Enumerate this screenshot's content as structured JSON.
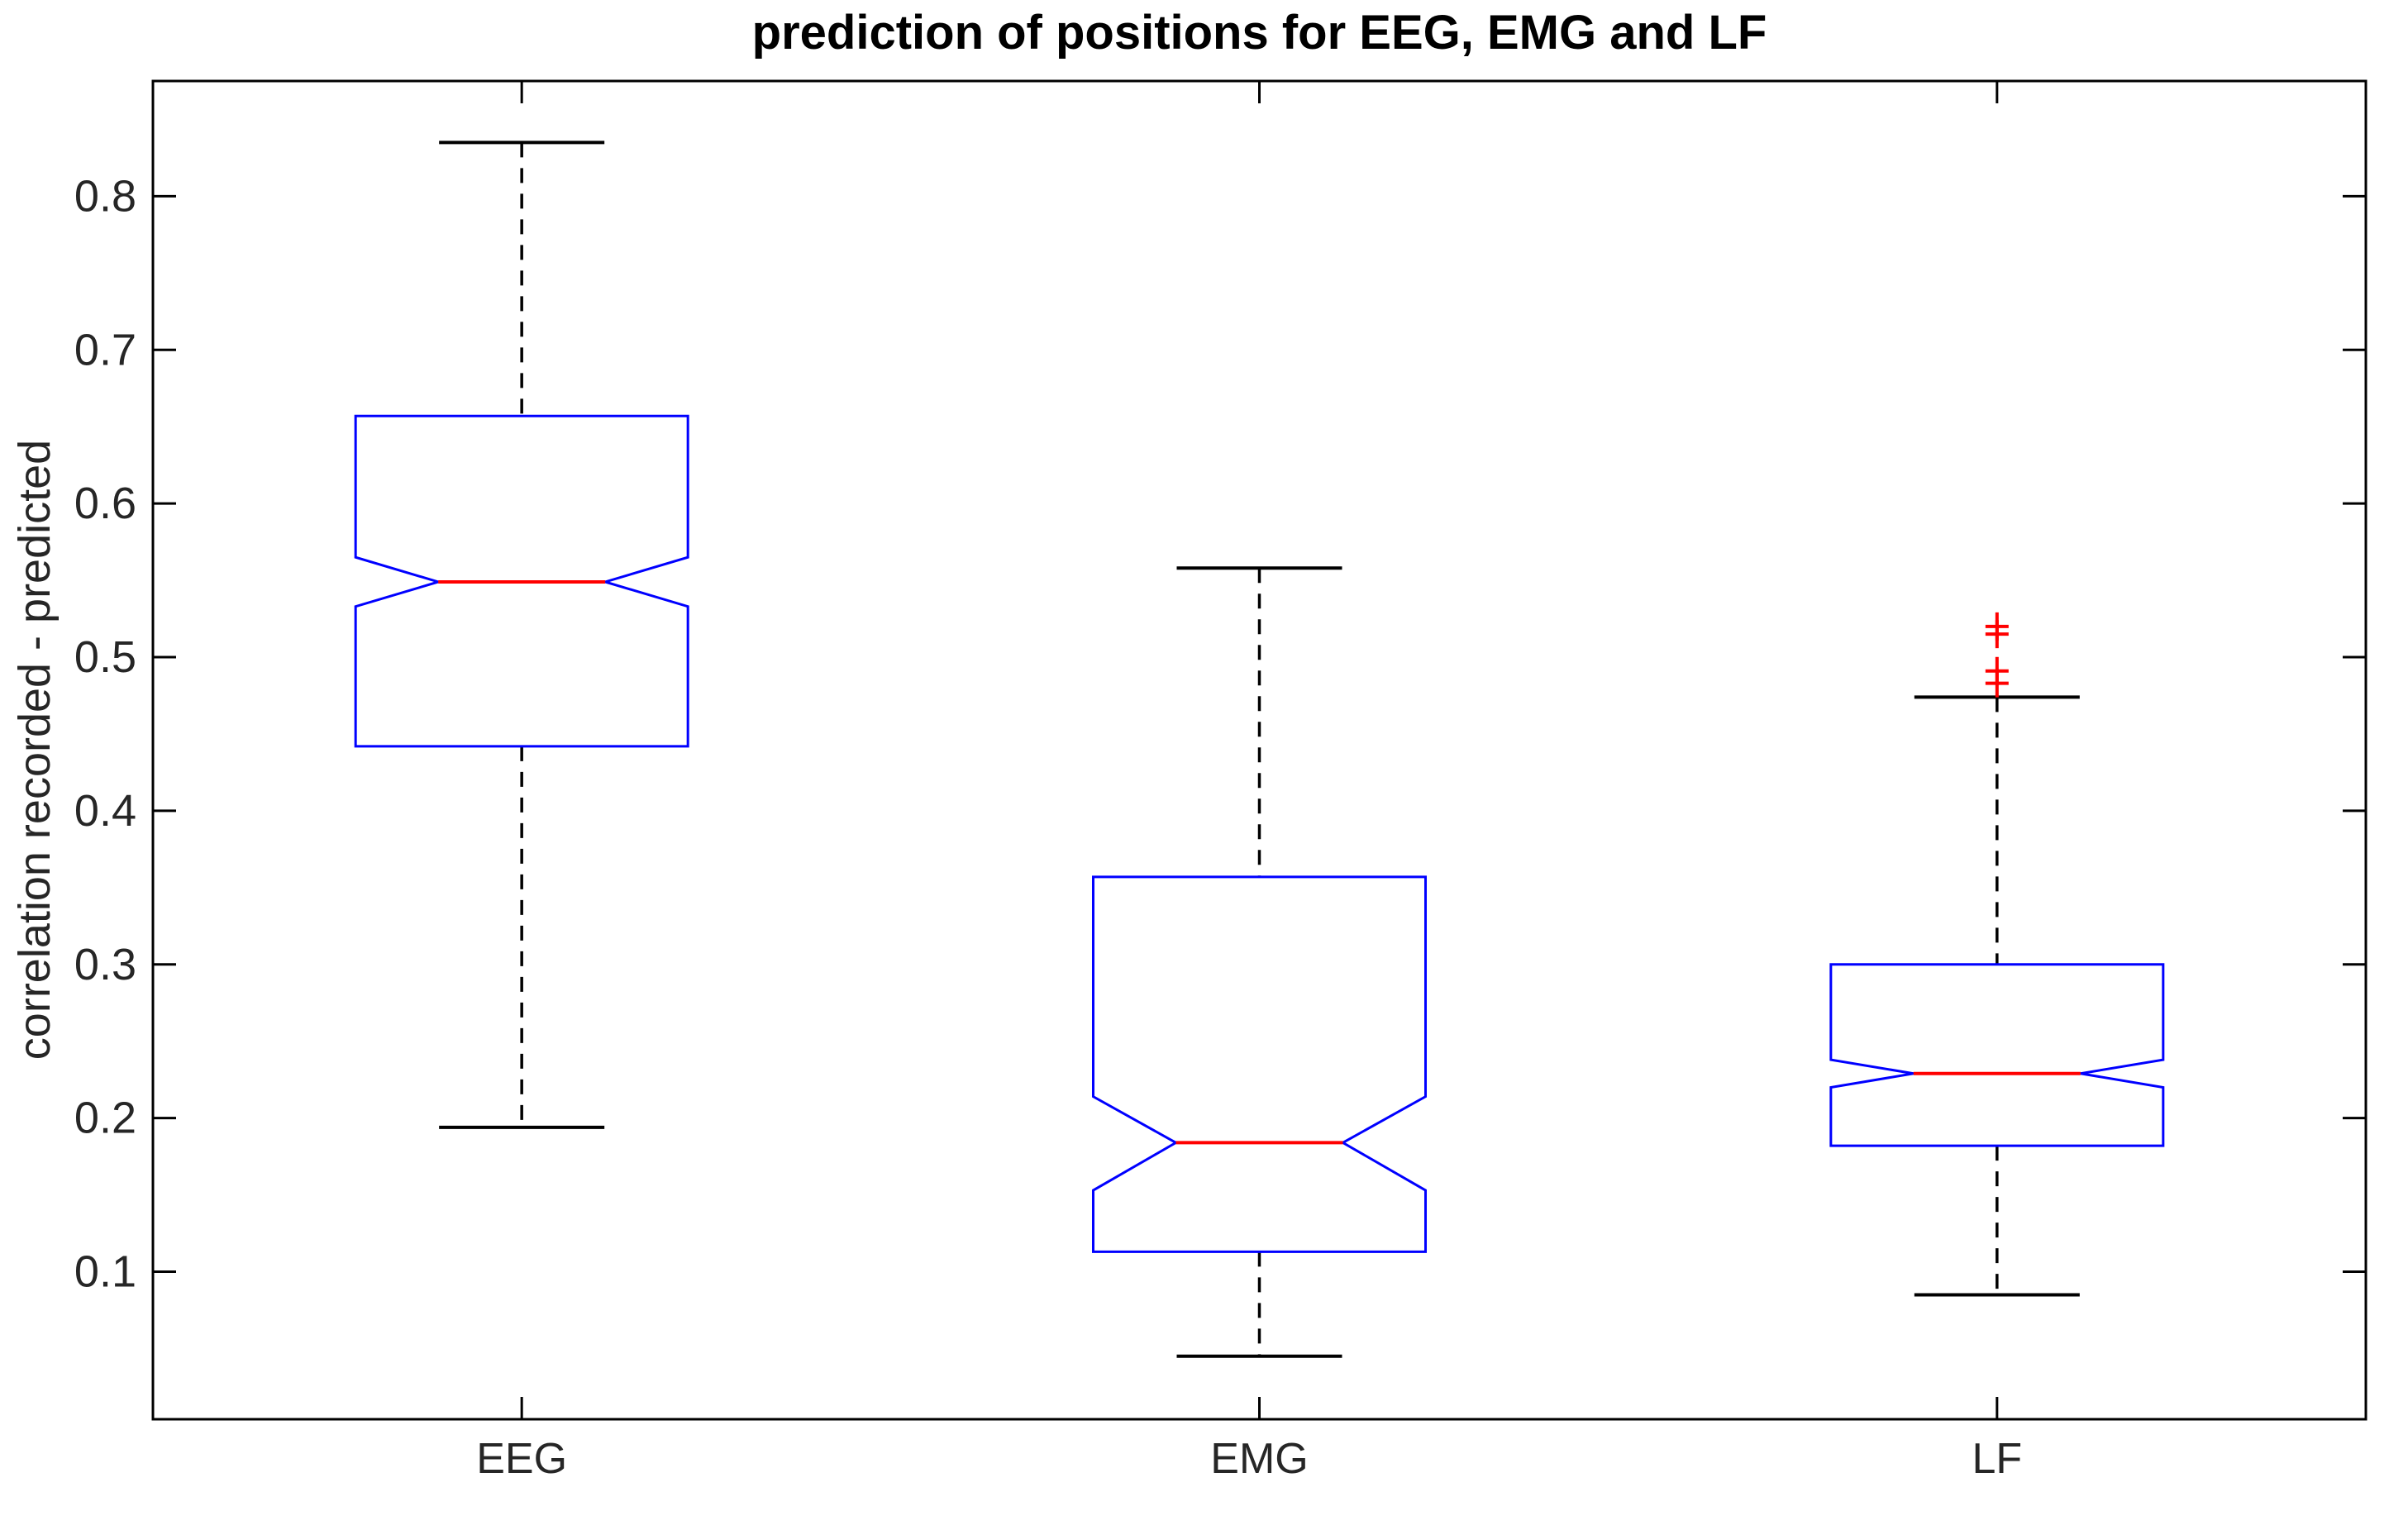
{
  "figure": {
    "title": "prediction of positions for EEG, EMG and LF",
    "ylabel": "correlation recorded - predicted",
    "background_color": "#ffffff"
  },
  "chart_data": {
    "type": "boxplot",
    "notched": true,
    "title": "prediction of positions for EEG, EMG and LF",
    "ylabel": "correlation recorded - predicted",
    "xlabel": "",
    "categories": [
      "EEG",
      "EMG",
      "LF"
    ],
    "yticks": [
      0.1,
      0.2,
      0.3,
      0.4,
      0.5,
      0.6,
      0.7,
      0.8
    ],
    "ylim": [
      0.004,
      0.875
    ],
    "xlim": [
      0.5,
      3.5
    ],
    "grid": false,
    "legend": "none",
    "series": [
      {
        "name": "EEG",
        "median": 0.549,
        "q1": 0.442,
        "q3": 0.657,
        "notch_low": 0.533,
        "notch_high": 0.565,
        "whisker_low": 0.194,
        "whisker_high": 0.835,
        "outliers": []
      },
      {
        "name": "EMG",
        "median": 0.184,
        "q1": 0.113,
        "q3": 0.357,
        "notch_low": 0.153,
        "notch_high": 0.214,
        "whisker_low": 0.045,
        "whisker_high": 0.558,
        "outliers": []
      },
      {
        "name": "LF",
        "median": 0.229,
        "q1": 0.182,
        "q3": 0.3,
        "notch_low": 0.22,
        "notch_high": 0.238,
        "whisker_low": 0.085,
        "whisker_high": 0.474,
        "outliers": [
          0.52,
          0.515,
          0.491,
          0.483
        ]
      }
    ],
    "colors": {
      "box": "#0000ff",
      "median": "#ff0000",
      "whisker": "#000000",
      "cap": "#000000",
      "outlier": "#ff0000",
      "axis": "#000000",
      "tick_label": "#262626"
    }
  }
}
